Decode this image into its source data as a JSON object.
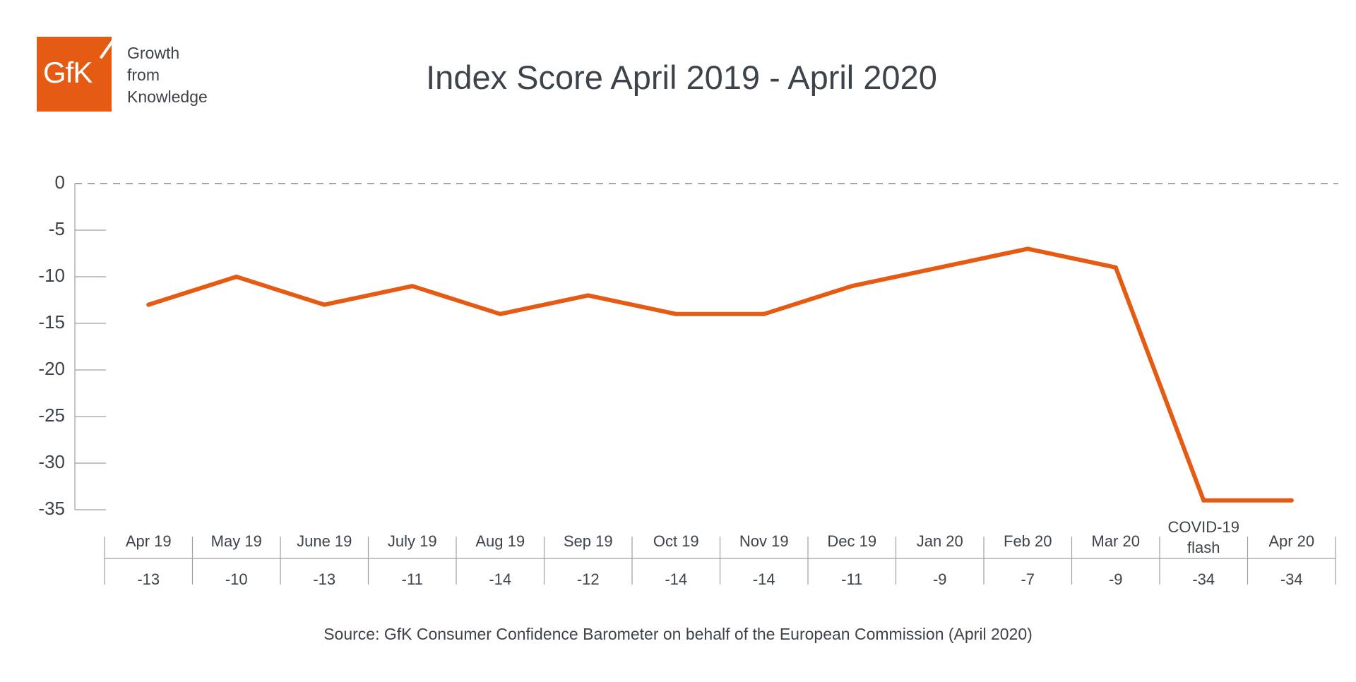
{
  "brand": {
    "logo_text": "GfK",
    "logo_color": "#e55b13",
    "tagline": [
      "Growth",
      "from",
      "Knowledge"
    ]
  },
  "source": "Source: GfK Consumer Confidence Barometer on behalf of the European Commission (April 2020)",
  "chart_data": {
    "type": "line",
    "title": "Index Score April 2019 - April 2020",
    "categories": [
      "Apr 19",
      "May 19",
      "June 19",
      "July 19",
      "Aug 19",
      "Sep 19",
      "Oct 19",
      "Nov 19",
      "Dec 19",
      "Jan 20",
      "Feb 20",
      "Mar 20",
      "COVID-19\nflash",
      "Apr 20"
    ],
    "series": [
      {
        "values": [
          -13,
          -10,
          -13,
          -11,
          -14,
          -12,
          -14,
          -14,
          -11,
          -9,
          -7,
          -9,
          -34,
          -34
        ],
        "color": "#e55b13"
      }
    ],
    "value_labels": [
      "-13",
      "-10",
      "-13",
      "-11",
      "-14",
      "-12",
      "-14",
      "-14",
      "-11",
      "-9",
      "-7",
      "-9",
      "-34",
      "-34"
    ],
    "yticks": [
      0,
      -5,
      -10,
      -15,
      -20,
      -25,
      -30,
      -35
    ],
    "ytick_labels": [
      "0",
      "-5",
      "-10",
      "-15",
      "-20",
      "-25",
      "-30",
      "-35"
    ],
    "ylim": [
      -35,
      0
    ],
    "zero_line": "dashed",
    "grid": false,
    "legend": "none"
  }
}
